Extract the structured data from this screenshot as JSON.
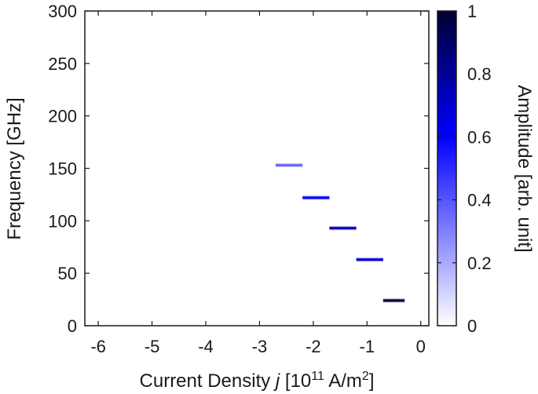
{
  "chart_data": {
    "type": "heatmap",
    "xlabel": {
      "prefix": "Current Density  ",
      "symbol": "j",
      "unit_open": " [10",
      "unit_exp": "11",
      "unit_mid": " A/m",
      "unit_sup": "2",
      "unit_close": "]"
    },
    "ylabel": "Frequency  [GHz]",
    "colorbar_label": "Amplitude [arb. unit]",
    "xlim": [
      -6.25,
      0.15
    ],
    "ylim": [
      0,
      300
    ],
    "x_ticks": [
      -6,
      -5,
      -4,
      -3,
      -2,
      -1,
      0
    ],
    "x_tick_labels": [
      "-6",
      "-5",
      "-4",
      "-3",
      "-2",
      "-1",
      "0"
    ],
    "y_ticks": [
      0,
      50,
      100,
      150,
      200,
      250,
      300
    ],
    "y_tick_labels": [
      "0",
      "50",
      "100",
      "150",
      "200",
      "250",
      "300"
    ],
    "colorbar_ticks": [
      0,
      0.2,
      0.4,
      0.6,
      0.8,
      1
    ],
    "colorbar_tick_labels": [
      "0",
      "0.2",
      "0.4",
      "0.6",
      "0.8",
      "1"
    ],
    "colormap": [
      "#ffffff",
      "#0000ff",
      "#000033"
    ],
    "segments": [
      {
        "x_start": -2.7,
        "x_end": -2.2,
        "frequency": 153,
        "amplitude": 0.35
      },
      {
        "x_start": -2.2,
        "x_end": -1.7,
        "frequency": 122,
        "amplitude": 0.6
      },
      {
        "x_start": -1.7,
        "x_end": -1.2,
        "frequency": 93,
        "amplitude": 0.75
      },
      {
        "x_start": -1.2,
        "x_end": -0.7,
        "frequency": 63,
        "amplitude": 0.7
      },
      {
        "x_start": -0.7,
        "x_end": -0.3,
        "frequency": 24,
        "amplitude": 1.0
      }
    ]
  }
}
